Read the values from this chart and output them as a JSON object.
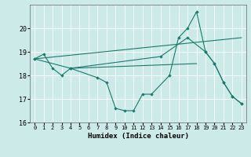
{
  "title": "",
  "xlabel": "Humidex (Indice chaleur)",
  "xlim": [
    -0.5,
    23.5
  ],
  "ylim": [
    16,
    21
  ],
  "yticks": [
    16,
    17,
    18,
    19,
    20
  ],
  "xticks": [
    0,
    1,
    2,
    3,
    4,
    5,
    6,
    7,
    8,
    9,
    10,
    11,
    12,
    13,
    14,
    15,
    16,
    17,
    18,
    19,
    20,
    21,
    22,
    23
  ],
  "bg_color": "#cceae7",
  "line_color": "#1a7a6e",
  "line1_x": [
    0,
    1,
    2,
    3,
    4,
    7,
    8,
    9,
    10,
    11,
    12,
    13,
    15,
    16,
    17,
    18,
    19,
    20,
    21,
    22,
    23
  ],
  "line1_y": [
    18.7,
    18.9,
    18.3,
    18.0,
    18.3,
    17.9,
    17.7,
    16.6,
    16.5,
    16.5,
    17.2,
    17.2,
    18.0,
    19.6,
    20.0,
    20.7,
    19.0,
    18.5,
    17.7,
    17.1,
    16.8
  ],
  "line2_x": [
    0,
    4,
    14,
    17,
    19,
    20,
    21,
    22,
    23
  ],
  "line2_y": [
    18.7,
    18.3,
    18.8,
    19.6,
    19.0,
    18.5,
    17.7,
    17.1,
    16.8
  ],
  "line3_x": [
    0,
    23
  ],
  "line3_y": [
    18.7,
    19.6
  ],
  "line4_x": [
    4,
    18
  ],
  "line4_y": [
    18.3,
    18.5
  ]
}
